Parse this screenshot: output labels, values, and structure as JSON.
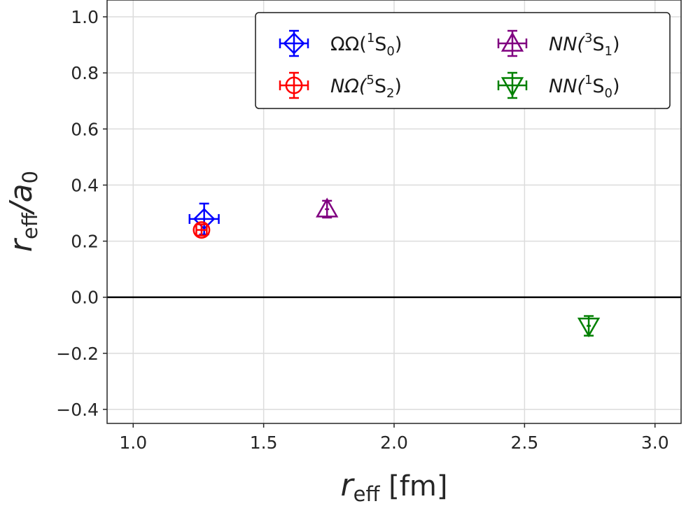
{
  "chart_data": {
    "type": "scatter",
    "xlabel": "r_eff [fm]",
    "xlabel_main": "r",
    "xlabel_sub": "eff",
    "xlabel_unit": " [fm]",
    "ylabel": "r_eff/a_0",
    "ylabel_main": "r",
    "ylabel_sub": "eff",
    "ylabel_slash": "/a",
    "ylabel_sub2": "0",
    "xlim": [
      0.9,
      3.1
    ],
    "ylim": [
      -0.45,
      1.06
    ],
    "xticks": [
      1.0,
      1.5,
      2.0,
      2.5,
      3.0
    ],
    "xtick_labels": [
      "1.0",
      "1.5",
      "2.0",
      "2.5",
      "3.0"
    ],
    "yticks": [
      -0.4,
      -0.2,
      0.0,
      0.2,
      0.4,
      0.6,
      0.8,
      1.0
    ],
    "ytick_labels": [
      "−0.4",
      "−0.2",
      "0.0",
      "0.2",
      "0.4",
      "0.6",
      "0.8",
      "1.0"
    ],
    "grid": true,
    "hline": 0.0,
    "legend_placement": "top-right",
    "series": [
      {
        "name": "ΩΩ(1S0)",
        "label_main": "ΩΩ(",
        "label_sup": "1",
        "label_mid": "S",
        "label_sub": "0",
        "label_end": ")",
        "italic": false,
        "color": "#0000ff",
        "marker": "diamond",
        "x": 1.272,
        "y": 0.279,
        "xerr": 0.056,
        "yerr": 0.055
      },
      {
        "name": "NΩ(5S2)",
        "label_main": "NΩ(",
        "label_sup": "5",
        "label_mid": "S",
        "label_sub": "2",
        "label_end": ")",
        "italic": true,
        "color": "#ff0000",
        "marker": "circle",
        "x": 1.262,
        "y": 0.24,
        "xerr": 0.02,
        "yerr": 0.02
      },
      {
        "name": "NN(3S1)",
        "label_main": "NN(",
        "label_sup": "3",
        "label_mid": "S",
        "label_sub": "1",
        "label_end": ")",
        "italic": true,
        "color": "#800080",
        "marker": "triangle-up",
        "x": 1.743,
        "y": 0.314,
        "xerr": 0.008,
        "yerr": 0.03
      },
      {
        "name": "NN(1S0)",
        "label_main": "NN(",
        "label_sup": "1",
        "label_mid": "S",
        "label_sub": "0",
        "label_end": ")",
        "italic": true,
        "color": "#008000",
        "marker": "triangle-down",
        "x": 2.746,
        "y": -0.102,
        "xerr": 0.008,
        "yerr": 0.035
      }
    ]
  }
}
